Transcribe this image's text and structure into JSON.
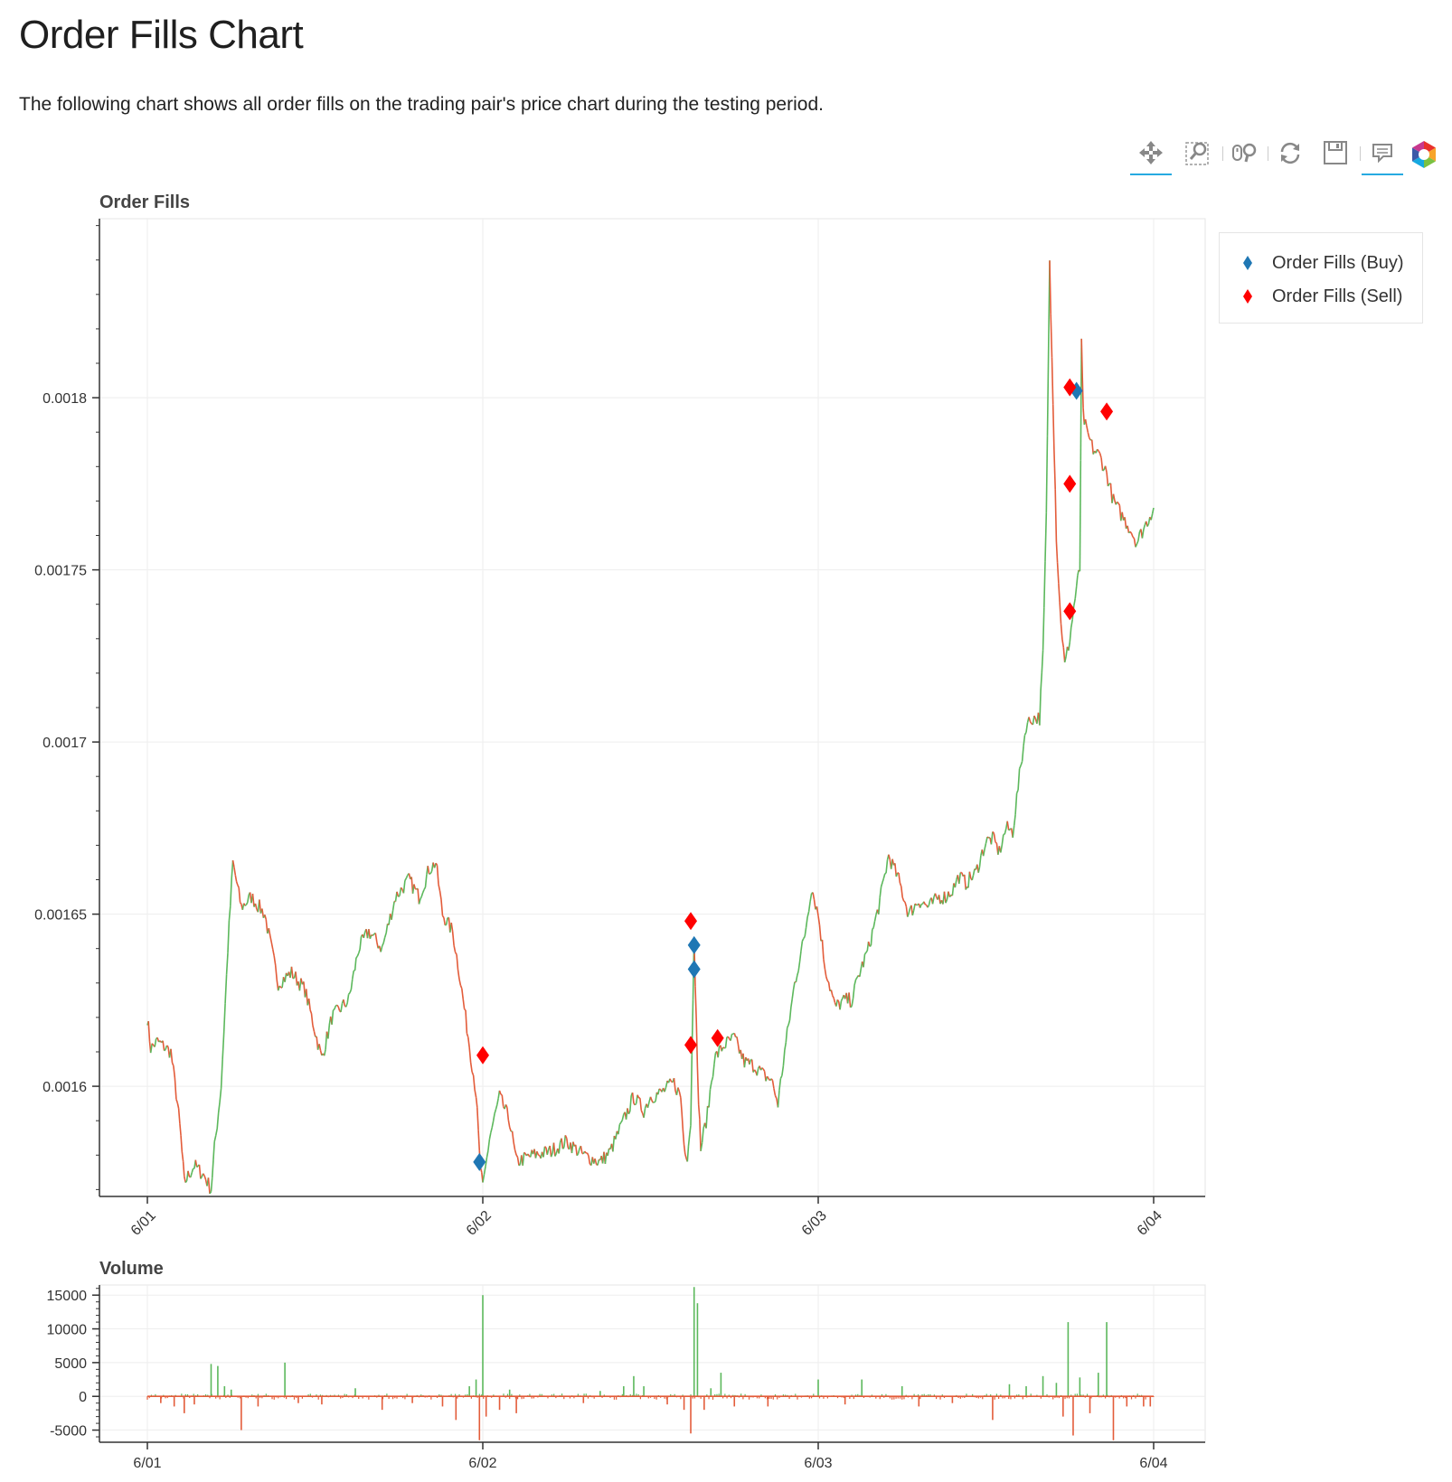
{
  "page": {
    "title": "Order Fills Chart",
    "description": "The following chart shows all order fills on the trading pair's price chart during the testing period."
  },
  "toolbar": [
    {
      "name": "pan-tool",
      "icon": "pan-icon",
      "active": true
    },
    {
      "name": "box-zoom-tool",
      "icon": "box-zoom-icon",
      "active": false
    },
    {
      "name": "wheel-zoom-tool",
      "icon": "wheel-zoom-icon",
      "active": false
    },
    {
      "name": "reset-tool",
      "icon": "reset-icon",
      "active": false
    },
    {
      "name": "save-tool",
      "icon": "save-icon",
      "active": false
    },
    {
      "name": "hover-tool",
      "icon": "hover-icon",
      "active": true
    },
    {
      "name": "bokeh-logo",
      "icon": "bokeh-logo-icon",
      "active": false
    }
  ],
  "colors": {
    "up": "#5cb85c",
    "down": "#e35c3a",
    "buy": "#1f77b4",
    "sell": "#ff0000",
    "grid": "#eeeeee"
  },
  "chart_data": [
    {
      "type": "line",
      "title": "Order Fills",
      "x_tick_labels": [
        "6/01",
        "6/02",
        "6/03",
        "6/04"
      ],
      "xlim": [
        "6/01",
        "6/04"
      ],
      "ylim": [
        0.001568,
        0.001852
      ],
      "y_ticks": [
        0.0016,
        0.00165,
        0.0017,
        0.00175,
        0.0018
      ],
      "y_tick_labels": [
        "0.0016",
        "0.00165",
        "0.0017",
        "0.00175",
        "0.0018"
      ],
      "grid": true,
      "legend_position": "top-right-outside",
      "series": [
        {
          "name": "",
          "kind": "price",
          "points": [
            [
              0.0,
              0.00162
            ],
            [
              0.01,
              0.001611
            ],
            [
              0.03,
              0.001613
            ],
            [
              0.07,
              0.00161
            ],
            [
              0.09,
              0.001595
            ],
            [
              0.1,
              0.001585
            ],
            [
              0.11,
              0.001572
            ],
            [
              0.14,
              0.001577
            ],
            [
              0.17,
              0.001574
            ],
            [
              0.19,
              0.00157
            ],
            [
              0.2,
              0.001582
            ],
            [
              0.22,
              0.0016
            ],
            [
              0.24,
              0.00164
            ],
            [
              0.255,
              0.001665
            ],
            [
              0.28,
              0.001652
            ],
            [
              0.31,
              0.001655
            ],
            [
              0.35,
              0.00165
            ],
            [
              0.39,
              0.00163
            ],
            [
              0.43,
              0.001633
            ],
            [
              0.47,
              0.001628
            ],
            [
              0.52,
              0.001608
            ],
            [
              0.55,
              0.00162
            ],
            [
              0.6,
              0.001625
            ],
            [
              0.63,
              0.00164
            ],
            [
              0.66,
              0.001645
            ],
            [
              0.7,
              0.00164
            ],
            [
              0.74,
              0.001655
            ],
            [
              0.78,
              0.00166
            ],
            [
              0.81,
              0.001655
            ],
            [
              0.84,
              0.001663
            ],
            [
              0.86,
              0.001665
            ],
            [
              0.88,
              0.00165
            ],
            [
              0.91,
              0.001645
            ],
            [
              0.93,
              0.001633
            ],
            [
              0.96,
              0.001612
            ],
            [
              0.98,
              0.001598
            ],
            [
              0.99,
              0.00158
            ],
            [
              1.0,
              0.00157
            ],
            [
              1.02,
              0.001585
            ],
            [
              1.05,
              0.001597
            ],
            [
              1.08,
              0.00159
            ],
            [
              1.1,
              0.001578
            ],
            [
              1.15,
              0.00158
            ],
            [
              1.2,
              0.001581
            ],
            [
              1.25,
              0.001584
            ],
            [
              1.3,
              0.00158
            ],
            [
              1.35,
              0.001578
            ],
            [
              1.38,
              0.001581
            ],
            [
              1.42,
              0.00159
            ],
            [
              1.45,
              0.001597
            ],
            [
              1.48,
              0.001593
            ],
            [
              1.5,
              0.001597
            ],
            [
              1.53,
              0.001598
            ],
            [
              1.57,
              0.001601
            ],
            [
              1.59,
              0.001597
            ],
            [
              1.6,
              0.001583
            ],
            [
              1.61,
              0.00158
            ],
            [
              1.62,
              0.00159
            ],
            [
              1.63,
              0.001645
            ],
            [
              1.64,
              0.001604
            ],
            [
              1.65,
              0.001582
            ],
            [
              1.67,
              0.001592
            ],
            [
              1.69,
              0.001608
            ],
            [
              1.72,
              0.001612
            ],
            [
              1.75,
              0.001614
            ],
            [
              1.78,
              0.001607
            ],
            [
              1.81,
              0.001606
            ],
            [
              1.84,
              0.001603
            ],
            [
              1.86,
              0.001602
            ],
            [
              1.88,
              0.001595
            ],
            [
              1.9,
              0.00161
            ],
            [
              1.93,
              0.00163
            ],
            [
              1.96,
              0.001644
            ],
            [
              1.98,
              0.001658
            ],
            [
              2.0,
              0.00165
            ],
            [
              2.02,
              0.001635
            ],
            [
              2.05,
              0.001623
            ],
            [
              2.08,
              0.001625
            ],
            [
              2.1,
              0.001625
            ],
            [
              2.12,
              0.001632
            ],
            [
              2.15,
              0.00164
            ],
            [
              2.18,
              0.001652
            ],
            [
              2.21,
              0.001667
            ],
            [
              2.24,
              0.00166
            ],
            [
              2.27,
              0.00165
            ],
            [
              2.3,
              0.001654
            ],
            [
              2.33,
              0.001652
            ],
            [
              2.36,
              0.001655
            ],
            [
              2.38,
              0.001655
            ],
            [
              2.4,
              0.001657
            ],
            [
              2.42,
              0.001661
            ],
            [
              2.44,
              0.001659
            ],
            [
              2.47,
              0.001662
            ],
            [
              2.5,
              0.001671
            ],
            [
              2.52,
              0.001672
            ],
            [
              2.54,
              0.001668
            ],
            [
              2.56,
              0.001675
            ],
            [
              2.58,
              0.001674
            ],
            [
              2.6,
              0.00169
            ],
            [
              2.62,
              0.001705
            ],
            [
              2.64,
              0.001707
            ],
            [
              2.66,
              0.001707
            ],
            [
              2.67,
              0.001725
            ],
            [
              2.68,
              0.001765
            ],
            [
              2.69,
              0.00184
            ],
            [
              2.7,
              0.0018
            ],
            [
              2.71,
              0.00176
            ],
            [
              2.72,
              0.00174
            ],
            [
              2.735,
              0.001722
            ],
            [
              2.75,
              0.00173
            ],
            [
              2.77,
              0.001745
            ],
            [
              2.78,
              0.00175
            ],
            [
              2.785,
              0.001815
            ],
            [
              2.79,
              0.001795
            ],
            [
              2.8,
              0.00179
            ],
            [
              2.82,
              0.001785
            ],
            [
              2.84,
              0.001783
            ],
            [
              2.86,
              0.001778
            ],
            [
              2.88,
              0.00177
            ],
            [
              2.91,
              0.001765
            ],
            [
              2.93,
              0.001762
            ],
            [
              2.95,
              0.001758
            ],
            [
              2.97,
              0.001762
            ],
            [
              3.0,
              0.001768
            ]
          ]
        },
        {
          "name": "Order Fills (Buy)",
          "kind": "buy",
          "points": [
            [
              0.99,
              0.001578
            ],
            [
              1.63,
              0.001641
            ],
            [
              1.63,
              0.001634
            ],
            [
              2.77,
              0.001802
            ]
          ]
        },
        {
          "name": "Order Fills (Sell)",
          "kind": "sell",
          "points": [
            [
              1.0,
              0.001609
            ],
            [
              1.62,
              0.001648
            ],
            [
              1.62,
              0.001612
            ],
            [
              1.7,
              0.001614
            ],
            [
              2.75,
              0.001803
            ],
            [
              2.75,
              0.001775
            ],
            [
              2.75,
              0.001738
            ],
            [
              2.86,
              0.001796
            ]
          ]
        }
      ]
    },
    {
      "type": "bar",
      "title": "Volume",
      "x_tick_labels": [
        "6/01",
        "6/02",
        "6/03",
        "6/04"
      ],
      "xlim": [
        "6/01",
        "6/04"
      ],
      "ylim": [
        -6800,
        16500
      ],
      "y_ticks": [
        -5000,
        0,
        5000,
        10000,
        15000
      ],
      "y_tick_labels": [
        "-5000",
        "0",
        "5000",
        "10000",
        "15000"
      ],
      "grid": true,
      "bars": [
        [
          0.04,
          -1000
        ],
        [
          0.08,
          -1500
        ],
        [
          0.11,
          -2500
        ],
        [
          0.14,
          -1200
        ],
        [
          0.19,
          4800
        ],
        [
          0.21,
          4500
        ],
        [
          0.23,
          1500
        ],
        [
          0.25,
          1000
        ],
        [
          0.28,
          -5000
        ],
        [
          0.33,
          -1500
        ],
        [
          0.41,
          5000
        ],
        [
          0.45,
          -1000
        ],
        [
          0.52,
          -1200
        ],
        [
          0.62,
          1200
        ],
        [
          0.7,
          -2000
        ],
        [
          0.79,
          -1000
        ],
        [
          0.88,
          -1500
        ],
        [
          0.92,
          -3500
        ],
        [
          0.96,
          1500
        ],
        [
          0.98,
          2500
        ],
        [
          0.99,
          -6500
        ],
        [
          1.0,
          15000
        ],
        [
          1.01,
          -3000
        ],
        [
          1.05,
          -2000
        ],
        [
          1.08,
          1000
        ],
        [
          1.1,
          -2500
        ],
        [
          1.3,
          -1000
        ],
        [
          1.35,
          800
        ],
        [
          1.42,
          1500
        ],
        [
          1.45,
          3000
        ],
        [
          1.48,
          1500
        ],
        [
          1.55,
          -1200
        ],
        [
          1.6,
          -2000
        ],
        [
          1.62,
          -5500
        ],
        [
          1.63,
          16200
        ],
        [
          1.64,
          13800
        ],
        [
          1.66,
          -2000
        ],
        [
          1.68,
          1200
        ],
        [
          1.71,
          3500
        ],
        [
          1.75,
          -1500
        ],
        [
          1.85,
          -1500
        ],
        [
          2.0,
          2500
        ],
        [
          2.08,
          -1200
        ],
        [
          2.13,
          2500
        ],
        [
          2.25,
          1500
        ],
        [
          2.3,
          -1500
        ],
        [
          2.4,
          -1000
        ],
        [
          2.52,
          -3500
        ],
        [
          2.57,
          1800
        ],
        [
          2.62,
          1500
        ],
        [
          2.67,
          3000
        ],
        [
          2.71,
          2000
        ],
        [
          2.73,
          -3000
        ],
        [
          2.745,
          11000
        ],
        [
          2.76,
          -5800
        ],
        [
          2.78,
          2800
        ],
        [
          2.81,
          -2500
        ],
        [
          2.835,
          3500
        ],
        [
          2.86,
          11000
        ],
        [
          2.88,
          -6500
        ],
        [
          2.92,
          -1500
        ],
        [
          2.97,
          -1500
        ],
        [
          2.99,
          -1500
        ]
      ]
    }
  ]
}
